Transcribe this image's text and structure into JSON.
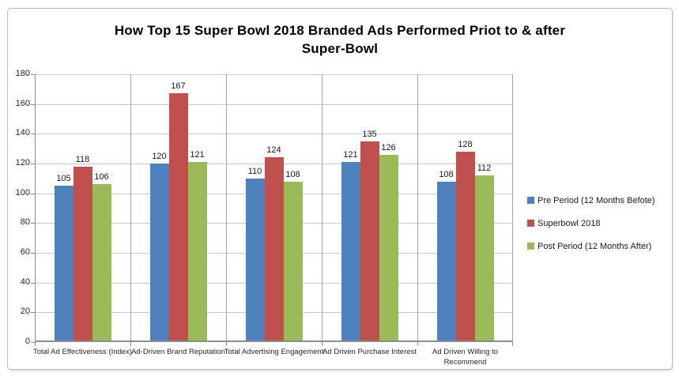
{
  "chart_data": {
    "type": "bar",
    "title": "How Top 15 Super Bowl 2018 Branded Ads Performed Priot to & after Super-Bowl",
    "title_lines": [
      "How Top 15 Super Bowl 2018 Branded Ads Performed Priot to & after",
      "Super-Bowl"
    ],
    "categories": [
      "Total Ad Effectiveness (Index)",
      "Ad-Driven Brand Reputation",
      "Total Advertising Engagement",
      "Ad Driven Purchase Interest",
      "Ad Driven Willing to Recommend"
    ],
    "series": [
      {
        "name": "Pre Period (12 Months Befote)",
        "color": "#4F81BD",
        "values": [
          105,
          120,
          110,
          121,
          108
        ]
      },
      {
        "name": "Superbowl 2018",
        "color": "#C0504D",
        "values": [
          118,
          167,
          124,
          135,
          128
        ]
      },
      {
        "name": "Post Period (12 Months After)",
        "color": "#9BBB59",
        "values": [
          106,
          121,
          108,
          126,
          112
        ]
      }
    ],
    "ylim": [
      0,
      180
    ],
    "yticks": [
      0,
      20,
      40,
      60,
      80,
      100,
      120,
      140,
      160,
      180
    ],
    "grid": "horizontal",
    "legend_position": "right",
    "data_labels": true,
    "colors": {
      "gridline": "#c9c9c9",
      "axis": "#8e8e8e",
      "separator": "#a3a3a3",
      "frame_border": "#bdbdbd",
      "text": "#262626"
    }
  }
}
